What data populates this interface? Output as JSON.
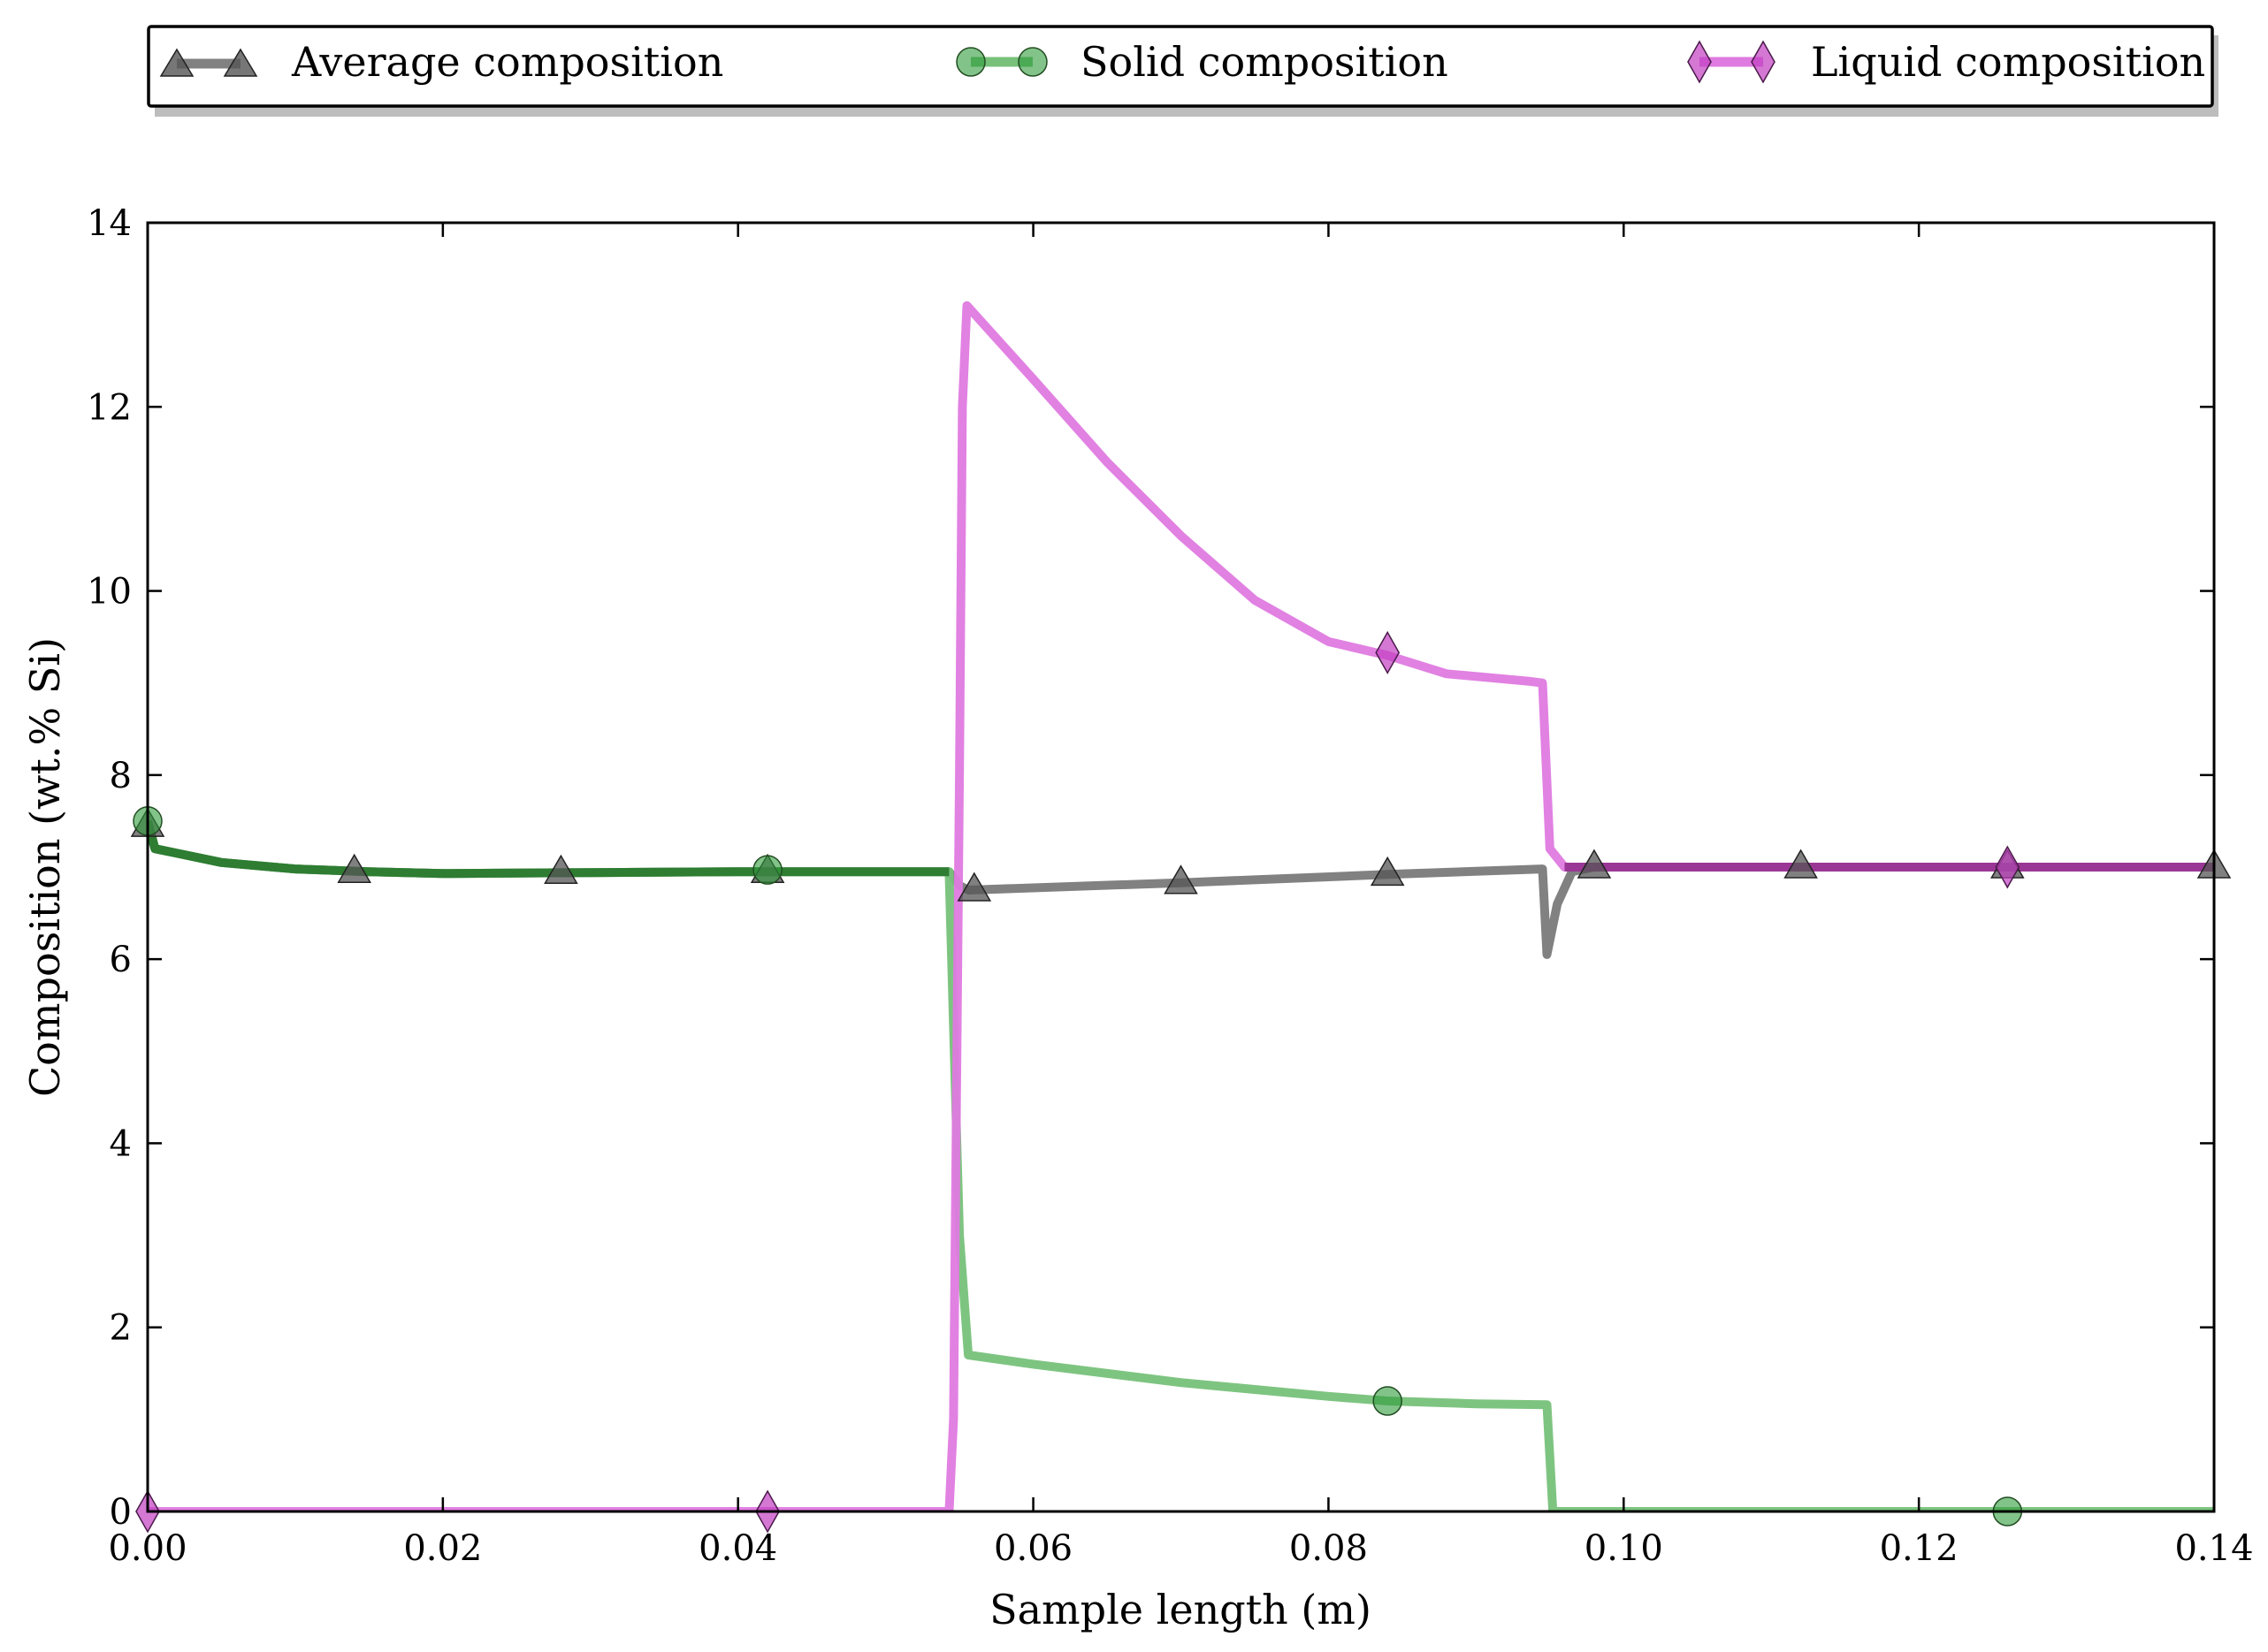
{
  "chart_data": {
    "type": "line",
    "title": "",
    "xlabel": "Sample length (m)",
    "ylabel": "Composition (wt.% Si)",
    "xlim": [
      0,
      0.14
    ],
    "ylim": [
      0,
      14
    ],
    "xticks": [
      0.0,
      0.02,
      0.04,
      0.06,
      0.08,
      0.1,
      0.12,
      0.14
    ],
    "xtick_labels": [
      "0.00",
      "0.02",
      "0.04",
      "0.06",
      "0.08",
      "0.10",
      "0.12",
      "0.14"
    ],
    "yticks": [
      0,
      2,
      4,
      6,
      8,
      10,
      12,
      14
    ],
    "ytick_labels": [
      "0",
      "2",
      "4",
      "6",
      "8",
      "10",
      "12",
      "14"
    ],
    "grid": false,
    "legend_position": "top, above plot",
    "series": [
      {
        "name": "Average composition",
        "color": "#7a7a7a",
        "marker": "triangle",
        "marker_color": "#555555",
        "x": [
          0,
          0.0005,
          0.002,
          0.005,
          0.01,
          0.015,
          0.02,
          0.03,
          0.04,
          0.05,
          0.0543,
          0.055,
          0.0556,
          0.07,
          0.084,
          0.0945,
          0.0948,
          0.0955,
          0.0965,
          0.098,
          0.112,
          0.126,
          0.14
        ],
        "y": [
          7.45,
          7.2,
          7.15,
          7.05,
          6.98,
          6.95,
          6.93,
          6.94,
          6.95,
          6.95,
          6.95,
          6.8,
          6.75,
          6.83,
          6.92,
          6.98,
          6.05,
          6.6,
          6.95,
          7.0,
          7.0,
          7.0,
          7.0
        ],
        "marker_x": [
          0,
          0.014,
          0.028,
          0.042,
          0.056,
          0.07,
          0.084,
          0.098,
          0.112,
          0.126,
          0.14
        ],
        "marker_y": [
          7.45,
          6.95,
          6.94,
          6.95,
          6.75,
          6.83,
          6.92,
          7.0,
          7.0,
          7.0,
          7.0
        ]
      },
      {
        "name": "Solid composition",
        "color": "#77c17a",
        "overlay_color": "#2e7d32",
        "marker": "circle",
        "marker_color": "#2e9b3a",
        "x": [
          0,
          0.0005,
          0.002,
          0.005,
          0.01,
          0.015,
          0.02,
          0.03,
          0.04,
          0.05,
          0.0543,
          0.055,
          0.0556,
          0.06,
          0.07,
          0.08,
          0.084,
          0.09,
          0.0948,
          0.0952,
          0.098,
          0.14
        ],
        "y": [
          7.5,
          7.2,
          7.15,
          7.05,
          6.98,
          6.95,
          6.93,
          6.94,
          6.95,
          6.95,
          6.95,
          3.0,
          1.7,
          1.6,
          1.4,
          1.25,
          1.2,
          1.17,
          1.16,
          0,
          0,
          0
        ],
        "marker_x": [
          0,
          0.042,
          0.084,
          0.126
        ],
        "marker_y": [
          7.5,
          6.97,
          1.2,
          0
        ]
      },
      {
        "name": "Liquid composition",
        "color": "#df7ae0",
        "overlay_color": "#9a3796",
        "marker": "diamond",
        "marker_color": "#c23fc2",
        "x": [
          0,
          0.042,
          0.0543,
          0.0546,
          0.055,
          0.0552,
          0.0555,
          0.06,
          0.065,
          0.07,
          0.075,
          0.08,
          0.084,
          0.088,
          0.0935,
          0.0945,
          0.095,
          0.096,
          0.098,
          0.112,
          0.126,
          0.14
        ],
        "y": [
          0,
          0,
          0,
          1.0,
          8.0,
          12.0,
          13.1,
          12.3,
          11.4,
          10.6,
          9.9,
          9.45,
          9.3,
          9.1,
          9.02,
          9.0,
          7.2,
          7.0,
          7.0,
          7.0,
          7.0,
          7.0
        ],
        "marker_x": [
          0,
          0.042,
          0.084,
          0.126
        ],
        "marker_y": [
          0,
          0,
          9.33,
          7.0
        ]
      }
    ]
  }
}
